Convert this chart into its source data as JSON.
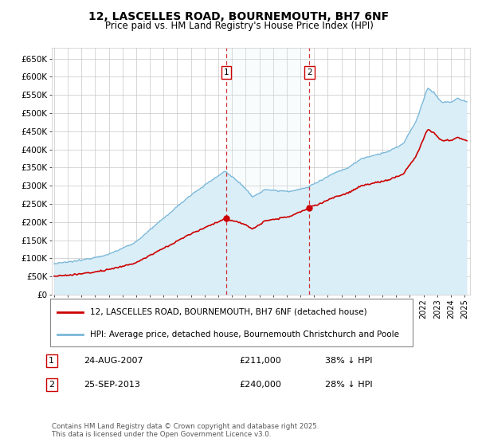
{
  "title": "12, LASCELLES ROAD, BOURNEMOUTH, BH7 6NF",
  "subtitle": "Price paid vs. HM Land Registry's House Price Index (HPI)",
  "background_color": "#ffffff",
  "grid_color": "#c8c8c8",
  "hpi_color": "#7ab8d9",
  "hpi_fill_color": "#daeef8",
  "price_color": "#cc0000",
  "legend_line1": "12, LASCELLES ROAD, BOURNEMOUTH, BH7 6NF (detached house)",
  "legend_line2": "HPI: Average price, detached house, Bournemouth Christchurch and Poole",
  "note1_label": "1",
  "note1_date": "24-AUG-2007",
  "note1_price": "£211,000",
  "note1_pct": "38% ↓ HPI",
  "note2_label": "2",
  "note2_date": "25-SEP-2013",
  "note2_price": "£240,000",
  "note2_pct": "28% ↓ HPI",
  "copyright": "Contains HM Land Registry data © Crown copyright and database right 2025.\nThis data is licensed under the Open Government Licence v3.0.",
  "ylim": [
    0,
    680000
  ],
  "yticks": [
    0,
    50000,
    100000,
    150000,
    200000,
    250000,
    300000,
    350000,
    400000,
    450000,
    500000,
    550000,
    600000,
    650000
  ]
}
